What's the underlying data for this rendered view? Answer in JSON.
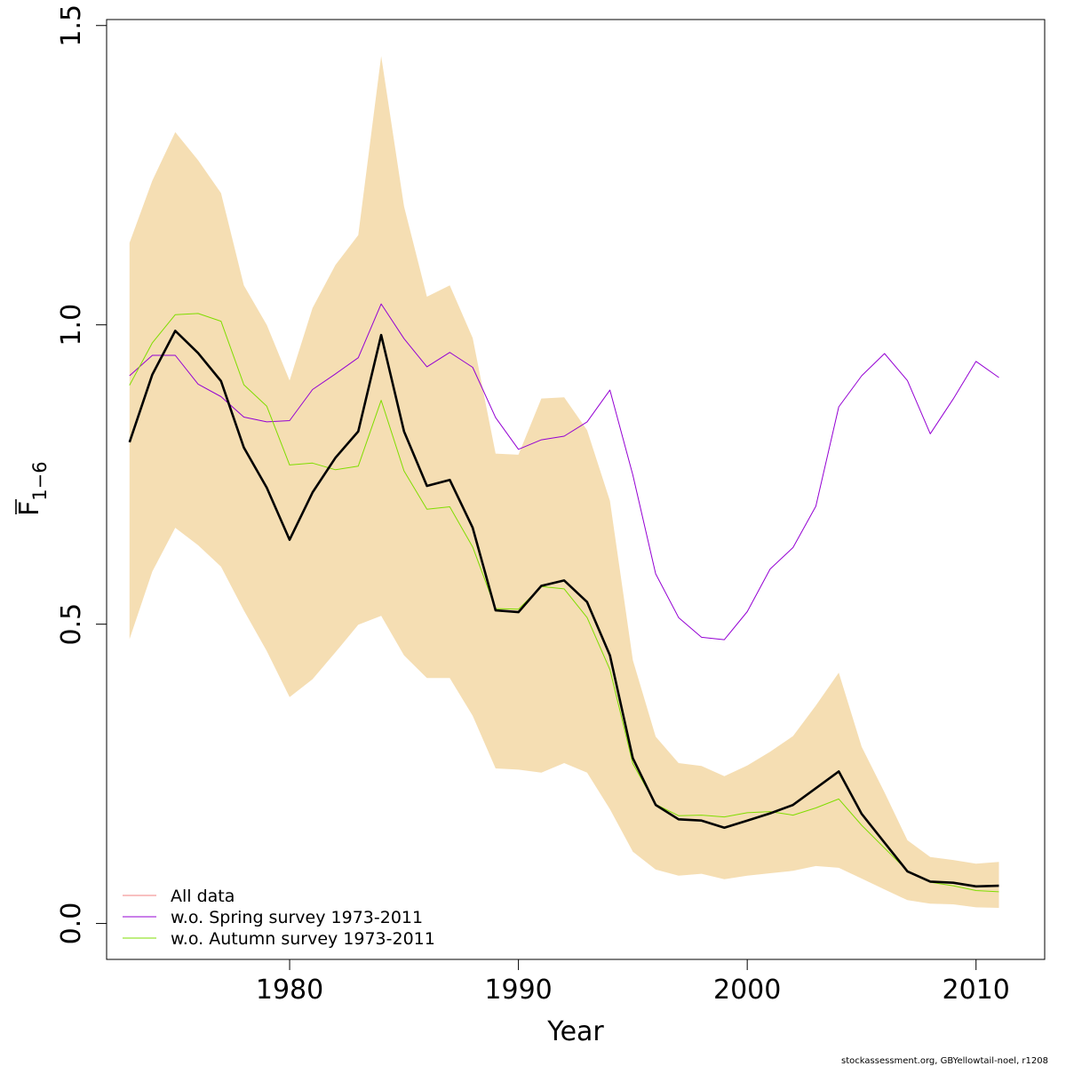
{
  "chart_data": {
    "type": "line",
    "title": "",
    "xlabel": "Year",
    "ylabel_main": "F",
    "ylabel_sub": "1−6",
    "xlim": [
      1972,
      2013
    ],
    "ylim": [
      -0.06,
      1.51
    ],
    "x_ticks": [
      1980,
      1990,
      2000,
      2010
    ],
    "y_ticks": [
      0.0,
      0.5,
      1.0,
      1.5
    ],
    "y_tick_labels": [
      "0.0",
      "0.5",
      "1.0",
      "1.5"
    ],
    "x": [
      1973,
      1974,
      1975,
      1976,
      1977,
      1978,
      1979,
      1980,
      1981,
      1982,
      1983,
      1984,
      1985,
      1986,
      1987,
      1988,
      1989,
      1990,
      1991,
      1992,
      1993,
      1994,
      1995,
      1996,
      1997,
      1998,
      1999,
      2000,
      2001,
      2002,
      2003,
      2004,
      2005,
      2006,
      2007,
      2008,
      2009,
      2010,
      2011
    ],
    "band": {
      "name": "confidence interval",
      "color": "#F5DEB3",
      "upper": [
        1.137,
        1.241,
        1.322,
        1.275,
        1.22,
        1.066,
        1.0,
        0.907,
        1.028,
        1.1,
        1.15,
        1.449,
        1.198,
        1.047,
        1.066,
        0.978,
        0.785,
        0.783,
        0.877,
        0.879,
        0.824,
        0.706,
        0.44,
        0.312,
        0.268,
        0.263,
        0.246,
        0.264,
        0.287,
        0.313,
        0.364,
        0.419,
        0.295,
        0.219,
        0.139,
        0.111,
        0.106,
        0.1,
        0.103
      ],
      "lower": [
        0.475,
        0.588,
        0.661,
        0.632,
        0.596,
        0.523,
        0.455,
        0.378,
        0.408,
        0.453,
        0.499,
        0.514,
        0.448,
        0.41,
        0.41,
        0.347,
        0.259,
        0.257,
        0.252,
        0.268,
        0.252,
        0.191,
        0.12,
        0.09,
        0.08,
        0.083,
        0.074,
        0.08,
        0.084,
        0.088,
        0.096,
        0.093,
        0.075,
        0.057,
        0.039,
        0.033,
        0.032,
        0.027,
        0.026
      ]
    },
    "series": [
      {
        "name": "All data",
        "color": "#000000",
        "legend_color": "#F08080",
        "width": 2.6,
        "values": [
          0.804,
          0.917,
          0.99,
          0.953,
          0.906,
          0.795,
          0.728,
          0.641,
          0.72,
          0.778,
          0.822,
          0.983,
          0.822,
          0.731,
          0.741,
          0.661,
          0.523,
          0.52,
          0.564,
          0.573,
          0.537,
          0.448,
          0.276,
          0.198,
          0.174,
          0.172,
          0.16,
          0.172,
          0.184,
          0.198,
          0.226,
          0.254,
          0.183,
          0.135,
          0.087,
          0.07,
          0.068,
          0.062,
          0.063
        ]
      },
      {
        "name": "w.o. Spring survey 1973-2011",
        "color": "#9400D3",
        "legend_color": "#9400D3",
        "width": 1,
        "values": [
          0.915,
          0.949,
          0.949,
          0.901,
          0.88,
          0.846,
          0.838,
          0.84,
          0.892,
          0.918,
          0.945,
          1.035,
          0.977,
          0.93,
          0.954,
          0.929,
          0.845,
          0.792,
          0.808,
          0.814,
          0.838,
          0.891,
          0.749,
          0.584,
          0.511,
          0.478,
          0.474,
          0.521,
          0.592,
          0.628,
          0.697,
          0.863,
          0.915,
          0.952,
          0.907,
          0.818,
          0.876,
          0.939,
          0.912
        ]
      },
      {
        "name": "w.o. Autumn survey 1973-2011",
        "color": "#7FDD00",
        "legend_color": "#7FDD00",
        "width": 1,
        "values": [
          0.899,
          0.97,
          1.017,
          1.019,
          1.006,
          0.9,
          0.864,
          0.766,
          0.769,
          0.758,
          0.764,
          0.874,
          0.756,
          0.692,
          0.696,
          0.629,
          0.526,
          0.525,
          0.563,
          0.559,
          0.511,
          0.424,
          0.267,
          0.199,
          0.18,
          0.181,
          0.178,
          0.185,
          0.187,
          0.181,
          0.193,
          0.208,
          0.164,
          0.126,
          0.088,
          0.069,
          0.063,
          0.055,
          0.053
        ]
      }
    ],
    "legend_position": "bottom-left"
  },
  "caption": "stockassessment.org, GBYellowtail-noel, r1208"
}
